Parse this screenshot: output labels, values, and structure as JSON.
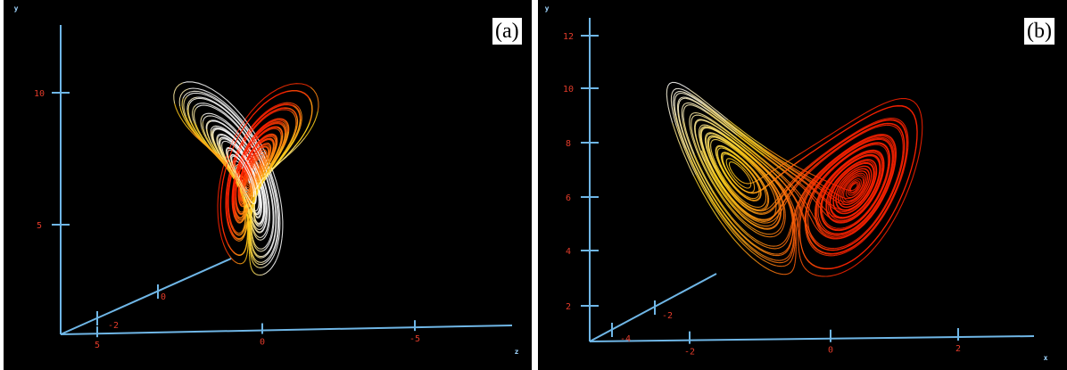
{
  "chart_data": [
    {
      "type": "line",
      "panel_label": "(a)",
      "axes": {
        "vertical_label": "y",
        "depth_label": "z"
      },
      "y_ticks": [
        "10",
        "5"
      ],
      "depth_ticks": [
        "-2",
        "0"
      ],
      "horizontal_ticks": [
        "5",
        "0",
        "-5"
      ],
      "colors": {
        "axis": "#6fb6e6",
        "tick": "#e23b2a",
        "hot": "#ff2200",
        "warm": "#ffd21c",
        "white": "#ffffff"
      }
    },
    {
      "type": "line",
      "panel_label": "(b)",
      "axes": {
        "vertical_label": "y",
        "horizontal_label": "x"
      },
      "y_ticks": [
        "12",
        "10",
        "8",
        "6",
        "4",
        "2"
      ],
      "depth_ticks": [
        "-4",
        "-2"
      ],
      "horizontal_ticks": [
        "-2",
        "0",
        "2"
      ],
      "colors": {
        "axis": "#6fb6e6",
        "tick": "#e23b2a",
        "hot": "#ff2200",
        "warm": "#ffd21c",
        "white": "#ffffff"
      }
    }
  ]
}
